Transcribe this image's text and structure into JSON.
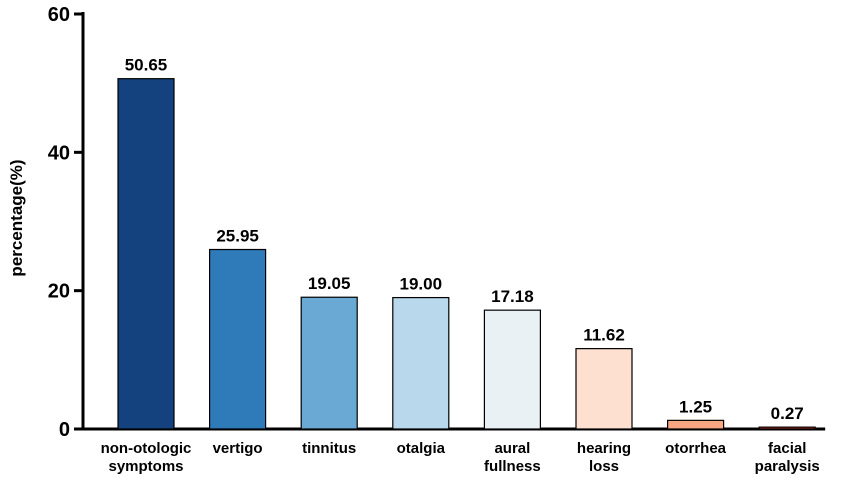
{
  "chart_data": {
    "type": "bar",
    "ylabel": "percentage(%)",
    "ylim": [
      0,
      60
    ],
    "yticks": [
      0,
      20,
      40,
      60
    ],
    "grid": false,
    "legend": "none",
    "categories": [
      [
        "non-otologic",
        "symptoms"
      ],
      [
        "vertigo"
      ],
      [
        "tinnitus"
      ],
      [
        "otalgia"
      ],
      [
        "aural",
        "fullness"
      ],
      [
        "hearing",
        "loss"
      ],
      [
        "otorrhea"
      ],
      [
        "facial",
        "paralysis"
      ]
    ],
    "values": [
      50.65,
      25.95,
      19.05,
      19.0,
      17.18,
      11.62,
      1.25,
      0.27
    ],
    "value_labels": [
      "50.65",
      "25.95",
      "19.05",
      "19.00",
      "17.18",
      "11.62",
      "1.25",
      "0.27"
    ],
    "colors": [
      "#14427e",
      "#2f7ab8",
      "#6aa9d3",
      "#b9d8ec",
      "#e9f1f5",
      "#fde0d0",
      "#f7a883",
      "#cc2f2a"
    ]
  }
}
